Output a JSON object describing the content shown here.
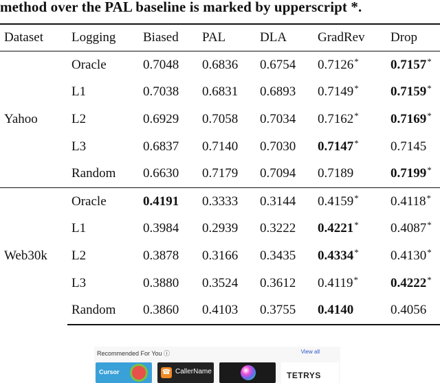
{
  "caption": "method over the PAL baseline is marked by upperscript *.",
  "table": {
    "headers": [
      "Dataset",
      "Logging",
      "Biased",
      "PAL",
      "DLA",
      "GradRev",
      "Drop"
    ],
    "groups": [
      {
        "dataset": "Yahoo",
        "rows": [
          {
            "logging": "Oracle",
            "cells": [
              {
                "v": "0.7048"
              },
              {
                "v": "0.6836"
              },
              {
                "v": "0.6754"
              },
              {
                "v": "0.7126",
                "star": "*"
              },
              {
                "v": "0.7157",
                "bold": true,
                "star": "*"
              }
            ]
          },
          {
            "logging": "L1",
            "cells": [
              {
                "v": "0.7038"
              },
              {
                "v": "0.6831"
              },
              {
                "v": "0.6893"
              },
              {
                "v": "0.7149",
                "star": "*"
              },
              {
                "v": "0.7159",
                "bold": true,
                "star": "*"
              }
            ]
          },
          {
            "logging": "L2",
            "cells": [
              {
                "v": "0.6929"
              },
              {
                "v": "0.7058"
              },
              {
                "v": "0.7034"
              },
              {
                "v": "0.7162",
                "star": "*"
              },
              {
                "v": "0.7169",
                "bold": true,
                "star": "*"
              }
            ]
          },
          {
            "logging": "L3",
            "cells": [
              {
                "v": "0.6837"
              },
              {
                "v": "0.7140"
              },
              {
                "v": "0.7030"
              },
              {
                "v": "0.7147",
                "bold": true,
                "star": "*"
              },
              {
                "v": "0.7145"
              }
            ]
          },
          {
            "logging": "Random",
            "cells": [
              {
                "v": "0.6630"
              },
              {
                "v": "0.7179"
              },
              {
                "v": "0.7094"
              },
              {
                "v": "0.7189"
              },
              {
                "v": "0.7199",
                "bold": true,
                "star": "*"
              }
            ]
          }
        ]
      },
      {
        "dataset": "Web30k",
        "rows": [
          {
            "logging": "Oracle",
            "cells": [
              {
                "v": "0.4191",
                "bold": true
              },
              {
                "v": "0.3333"
              },
              {
                "v": "0.3144"
              },
              {
                "v": "0.4159",
                "star": "*"
              },
              {
                "v": "0.4118",
                "star": "*"
              }
            ]
          },
          {
            "logging": "L1",
            "cells": [
              {
                "v": "0.3984"
              },
              {
                "v": "0.2939"
              },
              {
                "v": "0.3222"
              },
              {
                "v": "0.4221",
                "bold": true,
                "star": "*"
              },
              {
                "v": "0.4087",
                "star": "*"
              }
            ]
          },
          {
            "logging": "L2",
            "cells": [
              {
                "v": "0.3878"
              },
              {
                "v": "0.3166"
              },
              {
                "v": "0.3435"
              },
              {
                "v": "0.4334",
                "bold": true,
                "star": "*"
              },
              {
                "v": "0.4130",
                "star": "*"
              }
            ]
          },
          {
            "logging": "L3",
            "cells": [
              {
                "v": "0.3880"
              },
              {
                "v": "0.3524"
              },
              {
                "v": "0.3612"
              },
              {
                "v": "0.4119",
                "star": "*"
              },
              {
                "v": "0.4222",
                "bold": true,
                "star": "*"
              }
            ]
          },
          {
            "logging": "Random",
            "cells": [
              {
                "v": "0.3860"
              },
              {
                "v": "0.4103"
              },
              {
                "v": "0.3755"
              },
              {
                "v": "0.4140",
                "bold": true
              },
              {
                "v": "0.4056"
              }
            ]
          }
        ]
      }
    ]
  },
  "ad": {
    "heading": "Recommended For You ⓘ",
    "link": "View all",
    "tiles": [
      {
        "name": "cursor-theme-tile",
        "label": "Cursor"
      },
      {
        "name": "callername-tile",
        "label": "CallerName"
      },
      {
        "name": "color-orb-tile",
        "label": ""
      },
      {
        "name": "tetrys-tile",
        "label": "TETRYS"
      }
    ]
  }
}
